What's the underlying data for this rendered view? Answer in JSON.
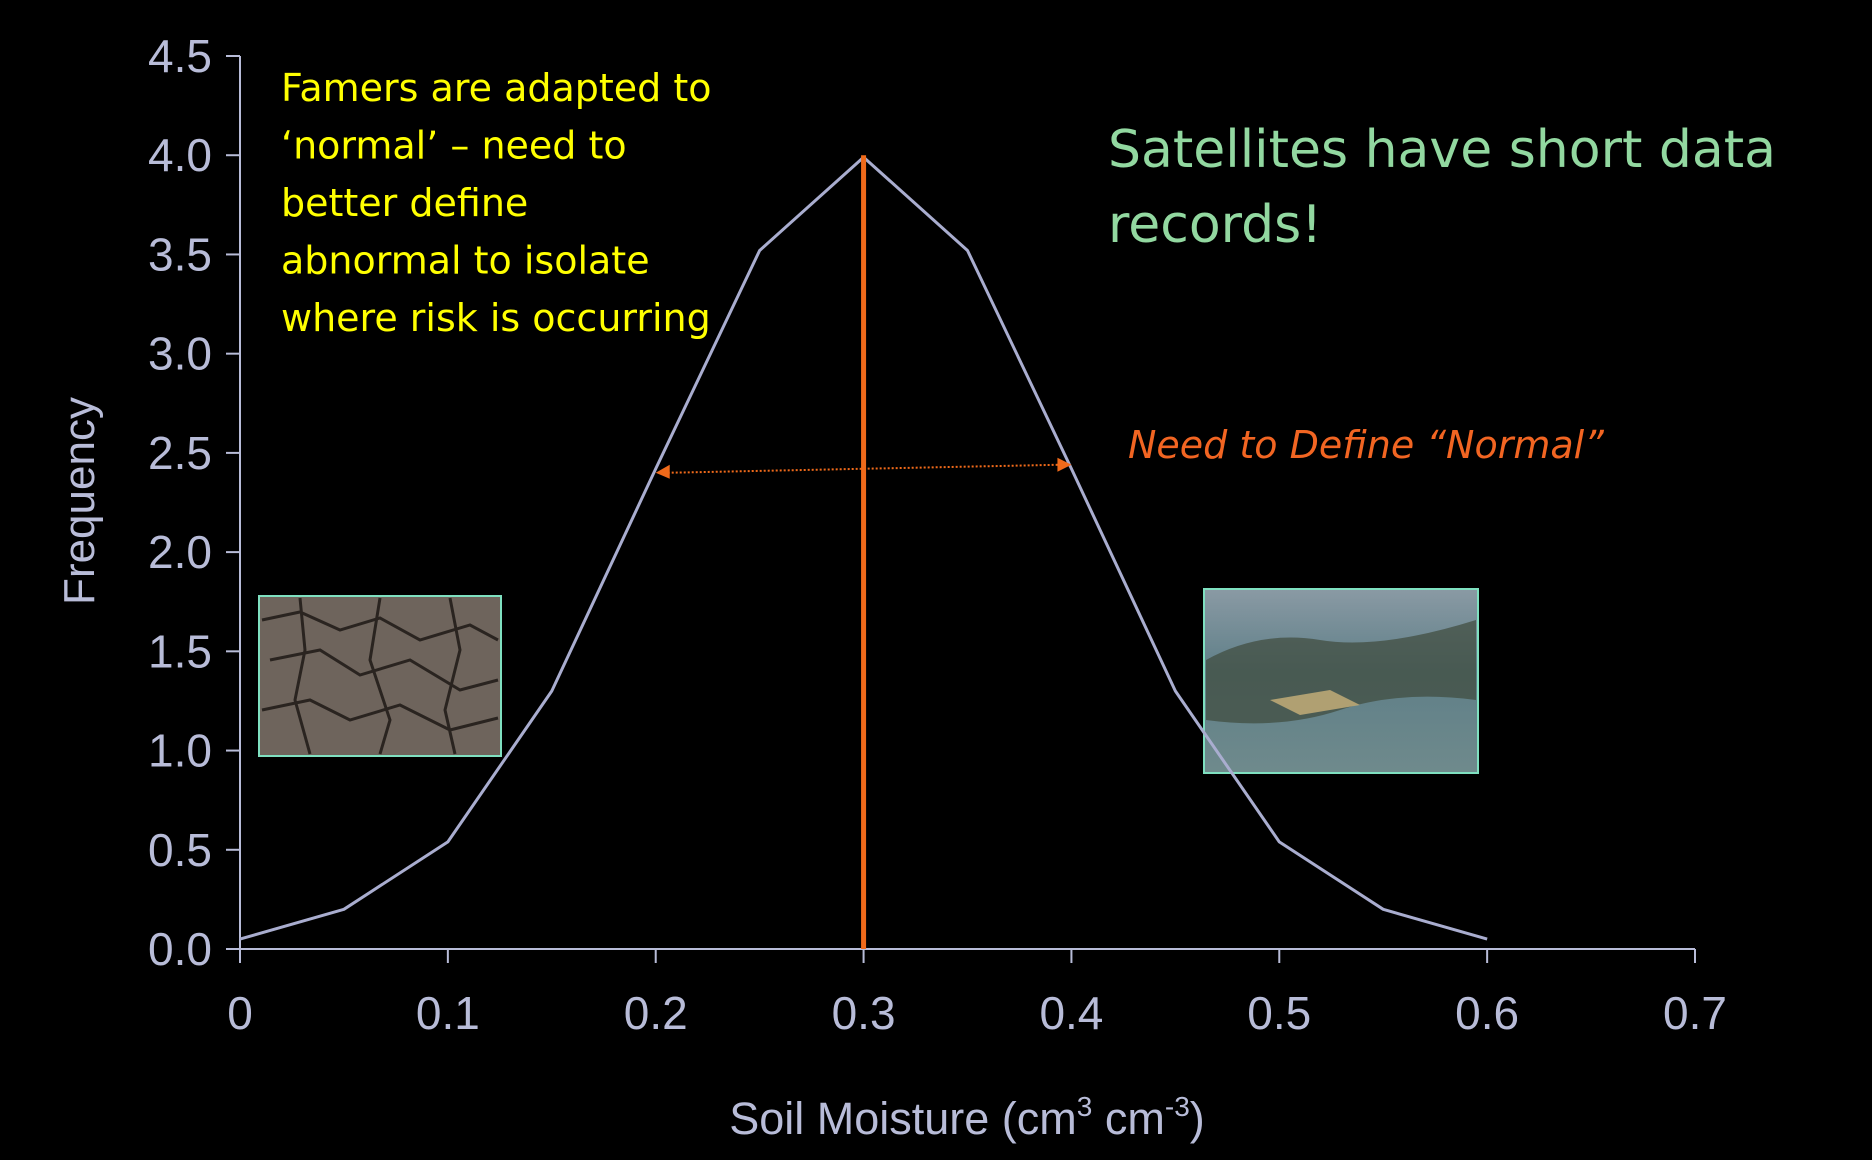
{
  "chart_data": {
    "type": "line",
    "x_label": {
      "text": "Soil Moisture (cm",
      "sup1": "3",
      "mid": " cm",
      "sup2": "-3",
      "end": ")"
    },
    "y_label": "Frequency",
    "x": [
      0,
      0.05,
      0.1,
      0.15,
      0.2,
      0.25,
      0.3,
      0.35,
      0.4,
      0.45,
      0.5,
      0.55,
      0.6
    ],
    "values": [
      0.05,
      0.2,
      0.54,
      1.3,
      2.42,
      3.52,
      3.99,
      3.52,
      2.42,
      1.3,
      0.54,
      0.2,
      0.05
    ],
    "color": "#a9adcf",
    "xlim": [
      0,
      0.7
    ],
    "xticks": [
      0,
      0.1,
      0.2,
      0.3,
      0.4,
      0.5,
      0.6,
      0.7
    ],
    "ylim": [
      0,
      4.5
    ],
    "yticks": [
      {
        "value": 0,
        "label": "0.0"
      },
      0.5,
      {
        "value": 1,
        "label": "1.0"
      },
      1.5,
      {
        "value": 2,
        "label": "2.0"
      },
      2.5,
      {
        "value": 3,
        "label": "3.0"
      },
      3.5,
      {
        "value": 4,
        "label": "4.0"
      },
      4.5
    ],
    "mean_line": {
      "x": 0.3,
      "ymax": 4.0,
      "color": "#f06a1a"
    },
    "spread_arrow": {
      "x": [
        0.2,
        0.4
      ],
      "y": 2.42,
      "color": "#f06a1a"
    },
    "annotations": [
      {
        "lines": [
          "Famers are adapted to",
          "‘normal’ – need to",
          "better define",
          "abnormal to isolate",
          "where risk is occurring"
        ],
        "color": "#ffff00"
      },
      {
        "lines": [
          "Satellites have short data",
          "records!"
        ],
        "color": "#92d8a0"
      },
      {
        "lines": [
          "Need to Define “Normal”"
        ],
        "color": "#f26522"
      }
    ]
  }
}
